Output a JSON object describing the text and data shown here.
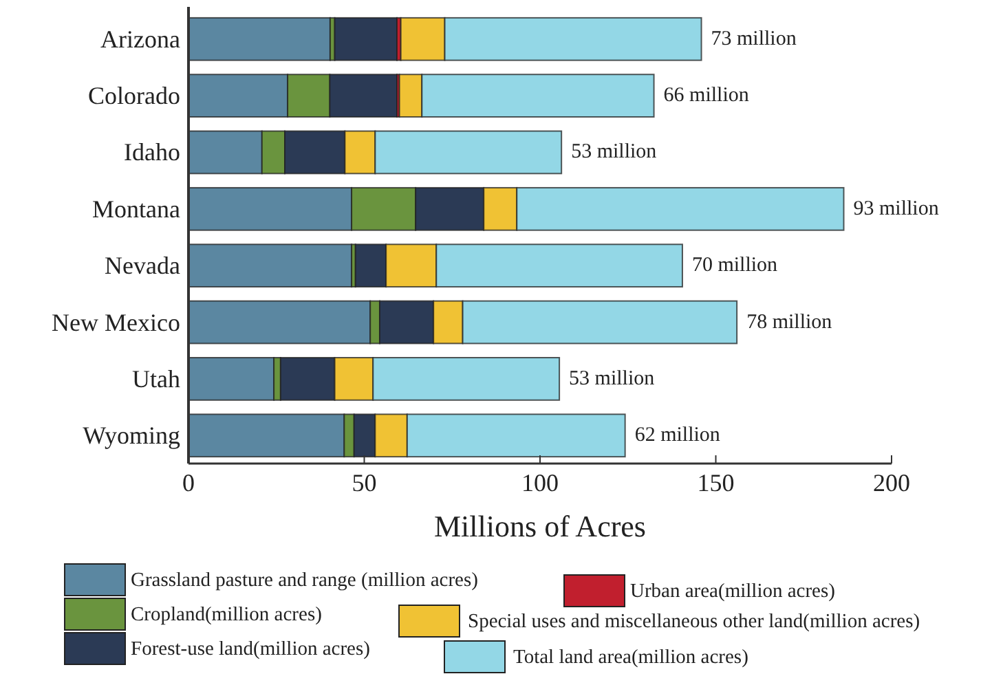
{
  "chart_data": {
    "type": "bar",
    "orientation": "horizontal",
    "stacked": true,
    "xlabel": "Millions of Acres",
    "categories": [
      "Arizona",
      "Colorado",
      "Idaho",
      "Montana",
      "Nevada",
      "New Mexico",
      "Utah",
      "Wyoming"
    ],
    "series": [
      {
        "name": "Grassland pasture and range (million acres)",
        "color": "#5b87a1",
        "values": [
          40.3,
          28.2,
          20.9,
          46.4,
          46.4,
          51.7,
          24.3,
          44.3
        ]
      },
      {
        "name": "Cropland(million acres)",
        "color": "#6a943e",
        "values": [
          1.3,
          12.0,
          6.5,
          18.2,
          1.1,
          2.7,
          1.9,
          2.8
        ]
      },
      {
        "name": "Forest-use land(million acres)",
        "color": "#2b3a55",
        "values": [
          17.7,
          19.1,
          17.1,
          19.4,
          8.7,
          15.3,
          15.4,
          6.0
        ]
      },
      {
        "name": "Urban area(million acres)",
        "color": "#c11f2e",
        "values": [
          1.1,
          0.7,
          0,
          0,
          0,
          0,
          0,
          0
        ]
      },
      {
        "name": "Special uses and miscellaneous other land(million acres)",
        "color": "#f0c234",
        "values": [
          12.5,
          6.4,
          8.6,
          9.4,
          14.3,
          8.3,
          10.9,
          9.1
        ]
      },
      {
        "name": "Total land area(million acres)",
        "color": "#93d7e6",
        "values": [
          73,
          66,
          53,
          93,
          70,
          78,
          53,
          62
        ],
        "value_labels": [
          "73 million",
          "66 million",
          "53 million",
          "93 million",
          "70 million",
          "78 million",
          "53 million",
          "62 million"
        ]
      }
    ],
    "xlim": [
      0,
      200
    ],
    "xticks": [
      0,
      50,
      100,
      150,
      200
    ],
    "grid": false,
    "legend": "bottom"
  }
}
